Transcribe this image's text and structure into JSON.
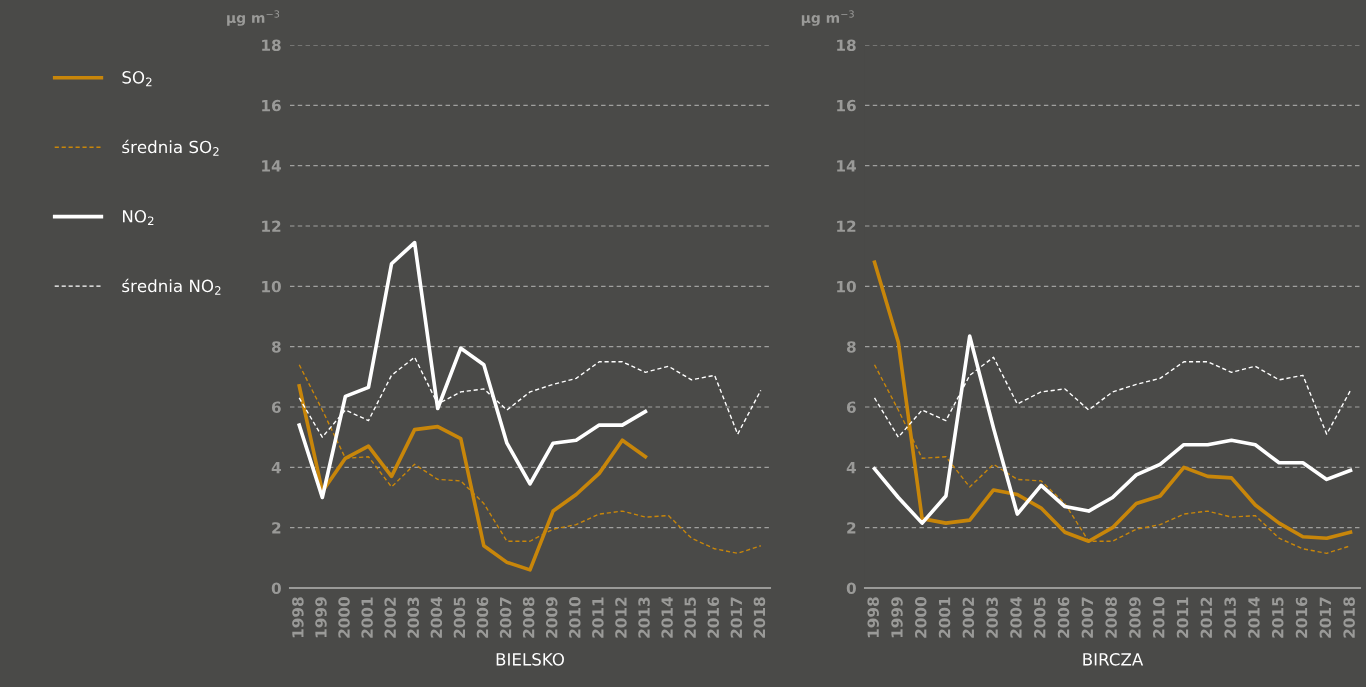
{
  "chart_data": [
    {
      "type": "line",
      "xlabel": "BIELSKO",
      "ylabel": "µg m$^{−3}$",
      "categories": [
        "1998",
        "1999",
        "2000",
        "2001",
        "2002",
        "2003",
        "2004",
        "2005",
        "2006",
        "2007",
        "2008",
        "2009",
        "2010",
        "2011",
        "2012",
        "2013",
        "2014",
        "2015",
        "2016",
        "2017",
        "2018"
      ],
      "ylim": [
        0,
        18
      ],
      "yticks": [
        0,
        2,
        4,
        6,
        8,
        10,
        12,
        14,
        16,
        18
      ],
      "grid": "y",
      "legend": "left",
      "series": [
        {
          "name": "SO$_{2}$",
          "color": "#c8860a",
          "line_style": "solid",
          "values": [
            6.7,
            3.2,
            4.3,
            4.7,
            3.7,
            5.25,
            5.35,
            4.95,
            1.4,
            0.85,
            0.6,
            2.55,
            3.1,
            3.8,
            4.9,
            4.35,
            null,
            null,
            null,
            null,
            null
          ]
        },
        {
          "name": "średnia SO$_{2}$",
          "color": "#c8860a",
          "line_style": "dashed",
          "values": [
            7.4,
            5.9,
            4.3,
            4.35,
            3.35,
            4.1,
            3.6,
            3.55,
            2.8,
            1.55,
            1.55,
            1.95,
            2.1,
            2.45,
            2.55,
            2.35,
            2.4,
            1.65,
            1.3,
            1.15,
            1.4
          ]
        },
        {
          "name": "NO$_{2}$",
          "color": "#ffffff",
          "line_style": "solid",
          "values": [
            5.4,
            3.0,
            6.35,
            6.65,
            10.75,
            11.45,
            5.95,
            7.95,
            7.4,
            4.8,
            3.45,
            4.8,
            4.9,
            5.4,
            5.4,
            5.85,
            null,
            null,
            null,
            null,
            null
          ]
        },
        {
          "name": "średnia NO$_{2}$",
          "color": "#ffffff",
          "line_style": "dashed",
          "values": [
            6.3,
            5.0,
            5.9,
            5.55,
            7.05,
            7.65,
            6.1,
            6.5,
            6.6,
            5.9,
            6.5,
            6.75,
            6.95,
            7.5,
            7.5,
            7.15,
            7.35,
            6.9,
            7.05,
            5.1,
            6.55
          ]
        }
      ]
    },
    {
      "type": "line",
      "xlabel": "BIRCZA",
      "ylabel": "µg m$^{−3}$",
      "categories": [
        "1998",
        "1999",
        "2000",
        "2001",
        "2002",
        "2003",
        "2004",
        "2005",
        "2006",
        "2007",
        "2008",
        "2009",
        "2010",
        "2011",
        "2012",
        "2013",
        "2014",
        "2015",
        "2016",
        "2017",
        "2018"
      ],
      "ylim": [
        0,
        18
      ],
      "yticks": [
        0,
        2,
        4,
        6,
        8,
        10,
        12,
        14,
        16,
        18
      ],
      "grid": "y",
      "series": [
        {
          "color": "#c8860a",
          "line_style": "solid",
          "values": [
            10.8,
            8.15,
            2.3,
            2.15,
            2.25,
            3.25,
            3.1,
            2.65,
            1.85,
            1.55,
            2.0,
            2.8,
            3.05,
            4.0,
            3.7,
            3.65,
            2.75,
            2.15,
            1.7,
            1.65,
            1.85
          ]
        },
        {
          "color": "#c8860a",
          "line_style": "dashed",
          "values": [
            7.4,
            5.9,
            4.3,
            4.35,
            3.35,
            4.1,
            3.6,
            3.55,
            2.8,
            1.55,
            1.55,
            1.95,
            2.1,
            2.45,
            2.55,
            2.35,
            2.4,
            1.65,
            1.3,
            1.15,
            1.4
          ]
        },
        {
          "color": "#ffffff",
          "line_style": "solid",
          "values": [
            3.95,
            3.0,
            2.15,
            3.05,
            8.35,
            5.3,
            2.45,
            3.4,
            2.7,
            2.55,
            3.0,
            3.75,
            4.1,
            4.75,
            4.75,
            4.9,
            4.75,
            4.15,
            4.15,
            3.6,
            3.9
          ]
        },
        {
          "color": "#ffffff",
          "line_style": "dashed",
          "values": [
            6.3,
            5.0,
            5.9,
            5.55,
            7.05,
            7.65,
            6.1,
            6.5,
            6.6,
            5.9,
            6.5,
            6.75,
            6.95,
            7.5,
            7.5,
            7.15,
            7.35,
            6.9,
            7.05,
            5.1,
            6.55
          ]
        }
      ]
    }
  ]
}
